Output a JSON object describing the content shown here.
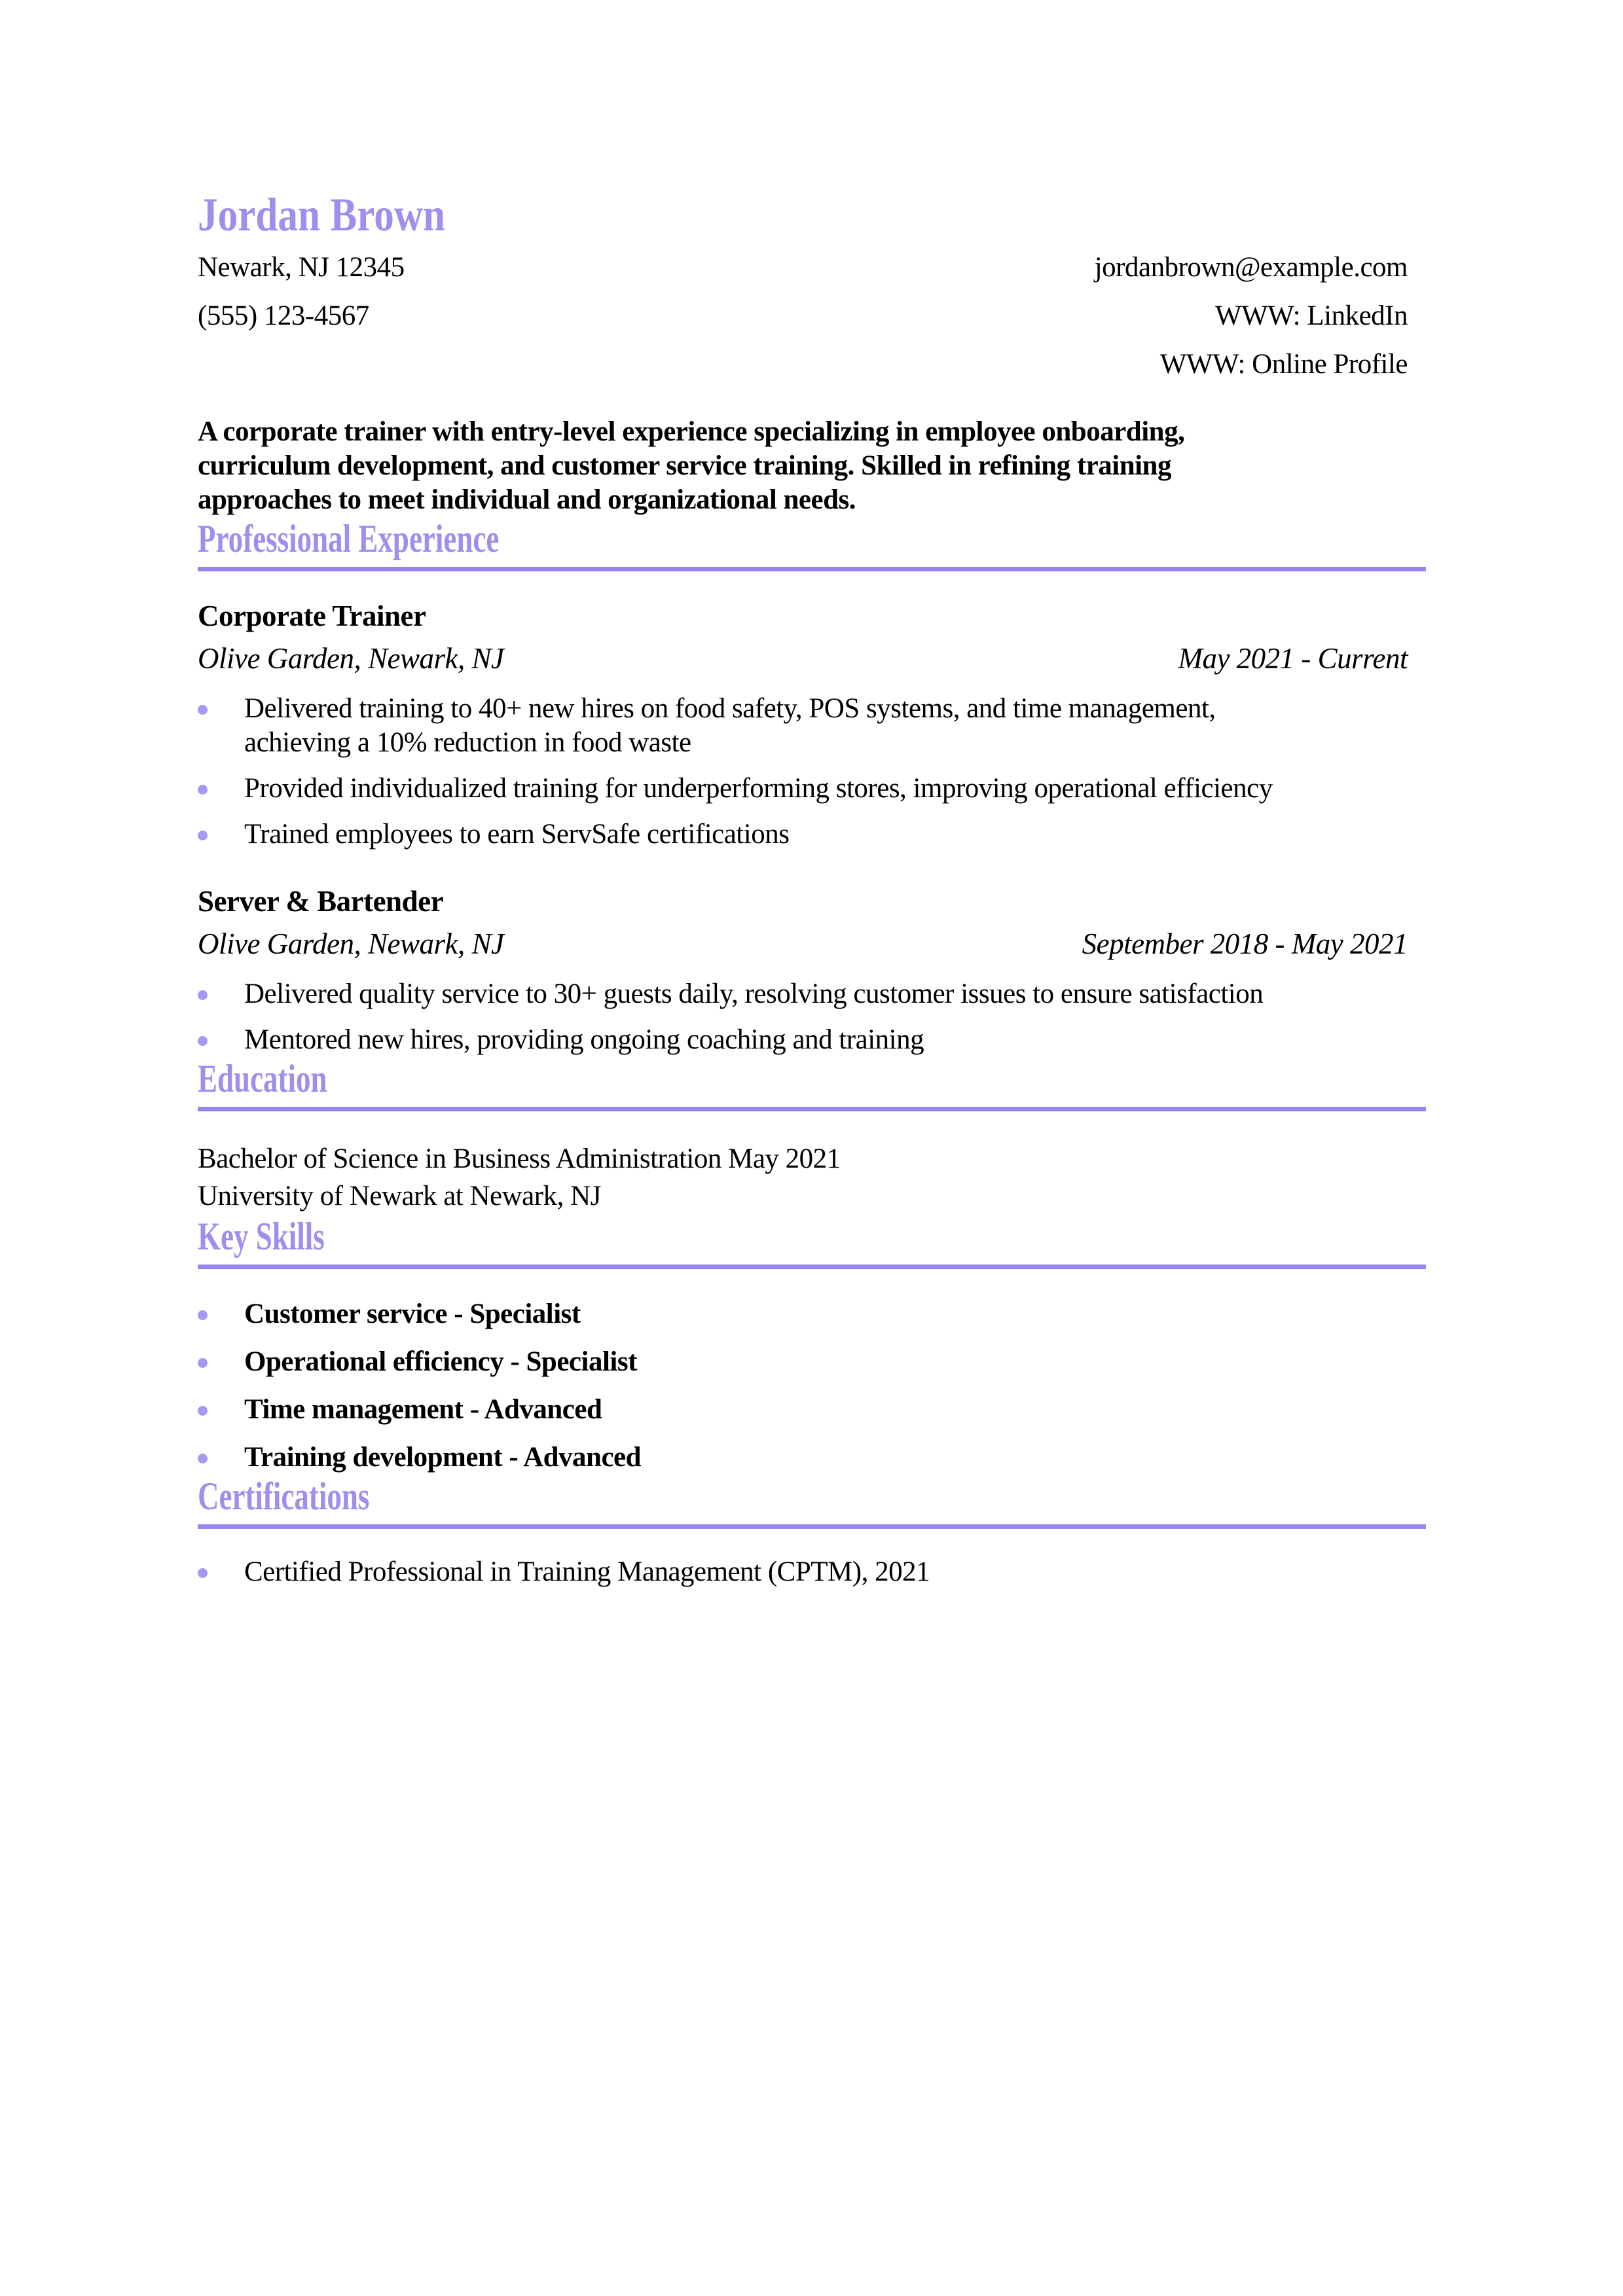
{
  "header": {
    "name": "Jordan Brown",
    "contact": {
      "address": "Newark, NJ 12345",
      "phone": "(555) 123-4567",
      "email": "jordanbrown@example.com",
      "linkedin": "WWW: LinkedIn",
      "online_profile": "WWW: Online Profile"
    },
    "summary_lines": [
      "A corporate trainer with entry-level experience specializing in employee onboarding,",
      "curriculum development, and customer service training. Skilled in refining training",
      "approaches to meet individual and organizational needs."
    ]
  },
  "experience": {
    "title": "Professional Experience",
    "jobs": [
      {
        "title": "Corporate Trainer",
        "company": "Olive Garden, Newark, NJ",
        "dates": "May 2021 - Current",
        "bullets": [
          {
            "lines": [
              "Delivered training to 40+ new hires on food safety, POS systems, and time management,",
              "achieving a 10% reduction in food waste"
            ]
          },
          {
            "lines": [
              "Provided individualized training for underperforming stores, improving operational efficiency"
            ]
          },
          {
            "lines": [
              "Trained employees to earn ServSafe certifications"
            ]
          }
        ]
      },
      {
        "title": "Server & Bartender",
        "company": "Olive Garden, Newark, NJ",
        "dates": "September 2018 - May 2021",
        "bullets": [
          {
            "lines": [
              "Delivered quality service to 30+ guests daily, resolving customer issues to ensure satisfaction"
            ]
          },
          {
            "lines": [
              "Mentored new hires, providing ongoing coaching and training"
            ]
          }
        ]
      }
    ]
  },
  "education": {
    "title": "Education",
    "degree": "Bachelor of Science in Business Administration May 2021",
    "school": "University of Newark at Newark, NJ"
  },
  "skills": {
    "title": "Key Skills",
    "items": [
      "Customer service - Specialist",
      "Operational efficiency - Specialist",
      "Time management - Advanced",
      "Training development - Advanced"
    ]
  },
  "certifications": {
    "title": "Certifications",
    "items": [
      "Certified Professional in Training Management (CPTM), 2021"
    ]
  },
  "colors": {
    "accent_heading": "#9D90EC",
    "accent_rule": "#9488EE",
    "bullet_dot": "#A49AF0",
    "text": "#000000"
  }
}
